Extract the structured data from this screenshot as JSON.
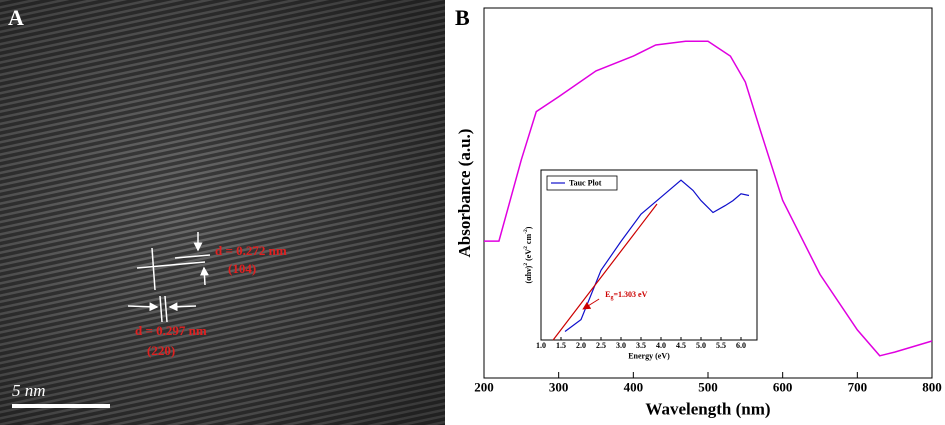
{
  "panel_a": {
    "label": "A",
    "d1": "d = 0.272 nm",
    "d1_plane": "(104)",
    "d2": "d = 0.297 nm",
    "d2_plane": "(220)",
    "scale_bar": "5 nm"
  },
  "chart_data": [
    {
      "type": "line",
      "panel_label": "B",
      "x_label": "Wavelength (nm)",
      "y_label": "Absorbance (a.u.)",
      "xlim": [
        200,
        800
      ],
      "xticks": [
        200,
        300,
        400,
        500,
        600,
        700,
        800
      ],
      "ylim": [
        0,
        1
      ],
      "series": [
        {
          "name": "Absorbance",
          "color": "#e000e0",
          "x": [
            200,
            220,
            250,
            270,
            300,
            350,
            400,
            430,
            470,
            500,
            530,
            550,
            570,
            600,
            650,
            700,
            730,
            750,
            800
          ],
          "values": [
            0.37,
            0.37,
            0.59,
            0.72,
            0.76,
            0.83,
            0.87,
            0.9,
            0.91,
            0.91,
            0.87,
            0.8,
            0.67,
            0.48,
            0.28,
            0.13,
            0.06,
            0.07,
            0.1
          ]
        }
      ]
    },
    {
      "type": "line",
      "x_label": "Energy (eV)",
      "y_label": [
        "(αhν)",
        "2",
        " (eV",
        "2",
        " cm",
        "-2",
        ")"
      ],
      "xlim": [
        1,
        6.4
      ],
      "xticks": [
        {
          "value": 1,
          "label": "1.0"
        },
        1.5,
        {
          "value": 2,
          "label": "2.0"
        },
        2.5,
        {
          "value": 3,
          "label": "3.0"
        },
        3.5,
        {
          "value": 4,
          "label": "4.0"
        },
        4.5,
        {
          "value": 5,
          "label": "5.0"
        },
        5.5,
        {
          "value": 6,
          "label": "6.0"
        }
      ],
      "ylim": [
        0,
        1
      ],
      "legend": "top-left",
      "series": [
        {
          "name": "Tauc Plot",
          "color": "#1010cc",
          "x": [
            1.6,
            2.0,
            2.5,
            3.0,
            3.5,
            4.0,
            4.5,
            4.8,
            5.0,
            5.3,
            5.6,
            5.8,
            6.0,
            6.2
          ],
          "values": [
            0.05,
            0.12,
            0.41,
            0.58,
            0.74,
            0.84,
            0.94,
            0.88,
            0.82,
            0.75,
            0.79,
            0.82,
            0.86,
            0.85
          ]
        }
      ],
      "fit": {
        "color": "#cc0000",
        "x": [
          1.303,
          3.9
        ],
        "values": [
          0,
          0.8
        ]
      },
      "annotation": [
        "E",
        "g",
        "=1.303 eV"
      ]
    }
  ]
}
